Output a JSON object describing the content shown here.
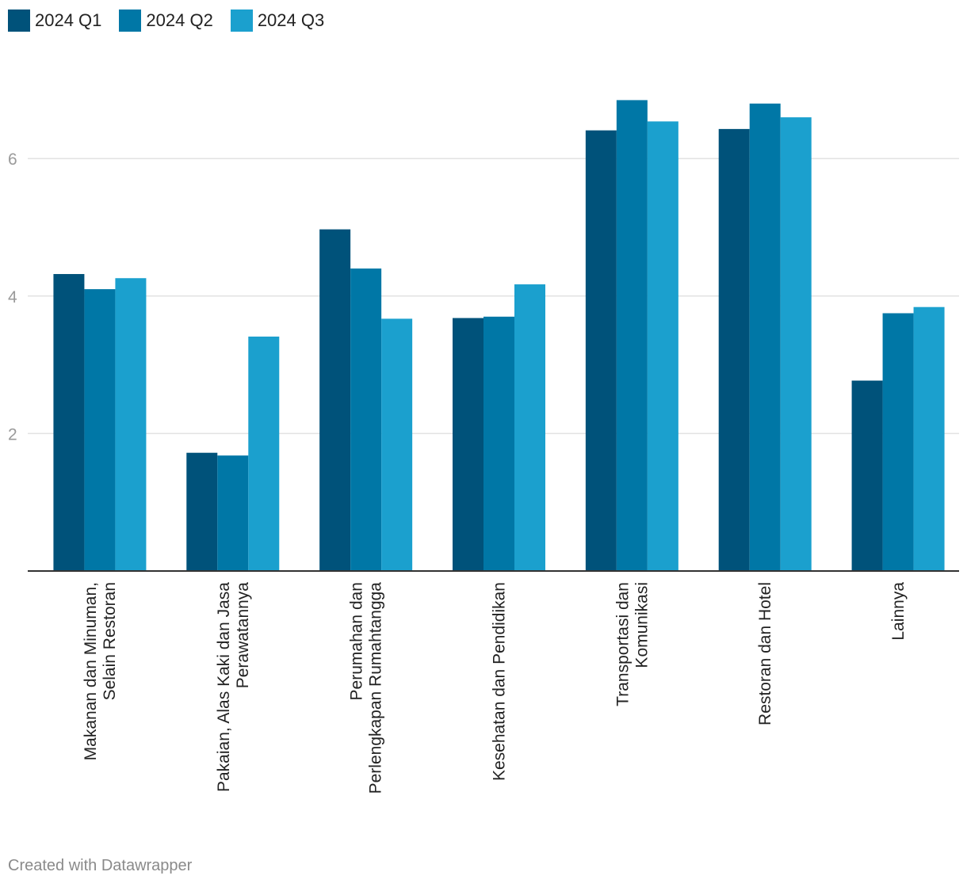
{
  "legend": [
    {
      "name": "2024 Q1",
      "color": "#00527a"
    },
    {
      "name": "2024 Q2",
      "color": "#0077a6"
    },
    {
      "name": "2024 Q3",
      "color": "#1ba0ce"
    }
  ],
  "credit": "Created with Datawrapper",
  "chart_data": {
    "type": "bar",
    "title": "",
    "xlabel": "",
    "ylabel": "",
    "ylim": [
      0,
      7.5
    ],
    "yticks": [
      2,
      4,
      6
    ],
    "grid": true,
    "legend_position": "top-left",
    "categories": [
      [
        "Makanan dan Minuman,",
        "Selain Restoran"
      ],
      [
        "Pakaian, Alas Kaki dan Jasa",
        "Perawatannya"
      ],
      [
        "Perumahan dan",
        "Perlengkapan Rumahtangga"
      ],
      [
        "Kesehatan dan Pendidikan"
      ],
      [
        "Transportasi dan",
        "Komunikasi"
      ],
      [
        "Restoran dan Hotel"
      ],
      [
        "Lainnya"
      ]
    ],
    "series": [
      {
        "name": "2024 Q1",
        "color": "#00527a",
        "values": [
          4.32,
          1.72,
          4.97,
          3.68,
          6.41,
          6.43,
          2.77
        ]
      },
      {
        "name": "2024 Q2",
        "color": "#0077a6",
        "values": [
          4.1,
          1.68,
          4.4,
          3.7,
          6.85,
          6.8,
          3.75
        ]
      },
      {
        "name": "2024 Q3",
        "color": "#1ba0ce",
        "values": [
          4.26,
          3.41,
          3.67,
          4.17,
          6.54,
          6.6,
          3.84
        ]
      }
    ]
  }
}
